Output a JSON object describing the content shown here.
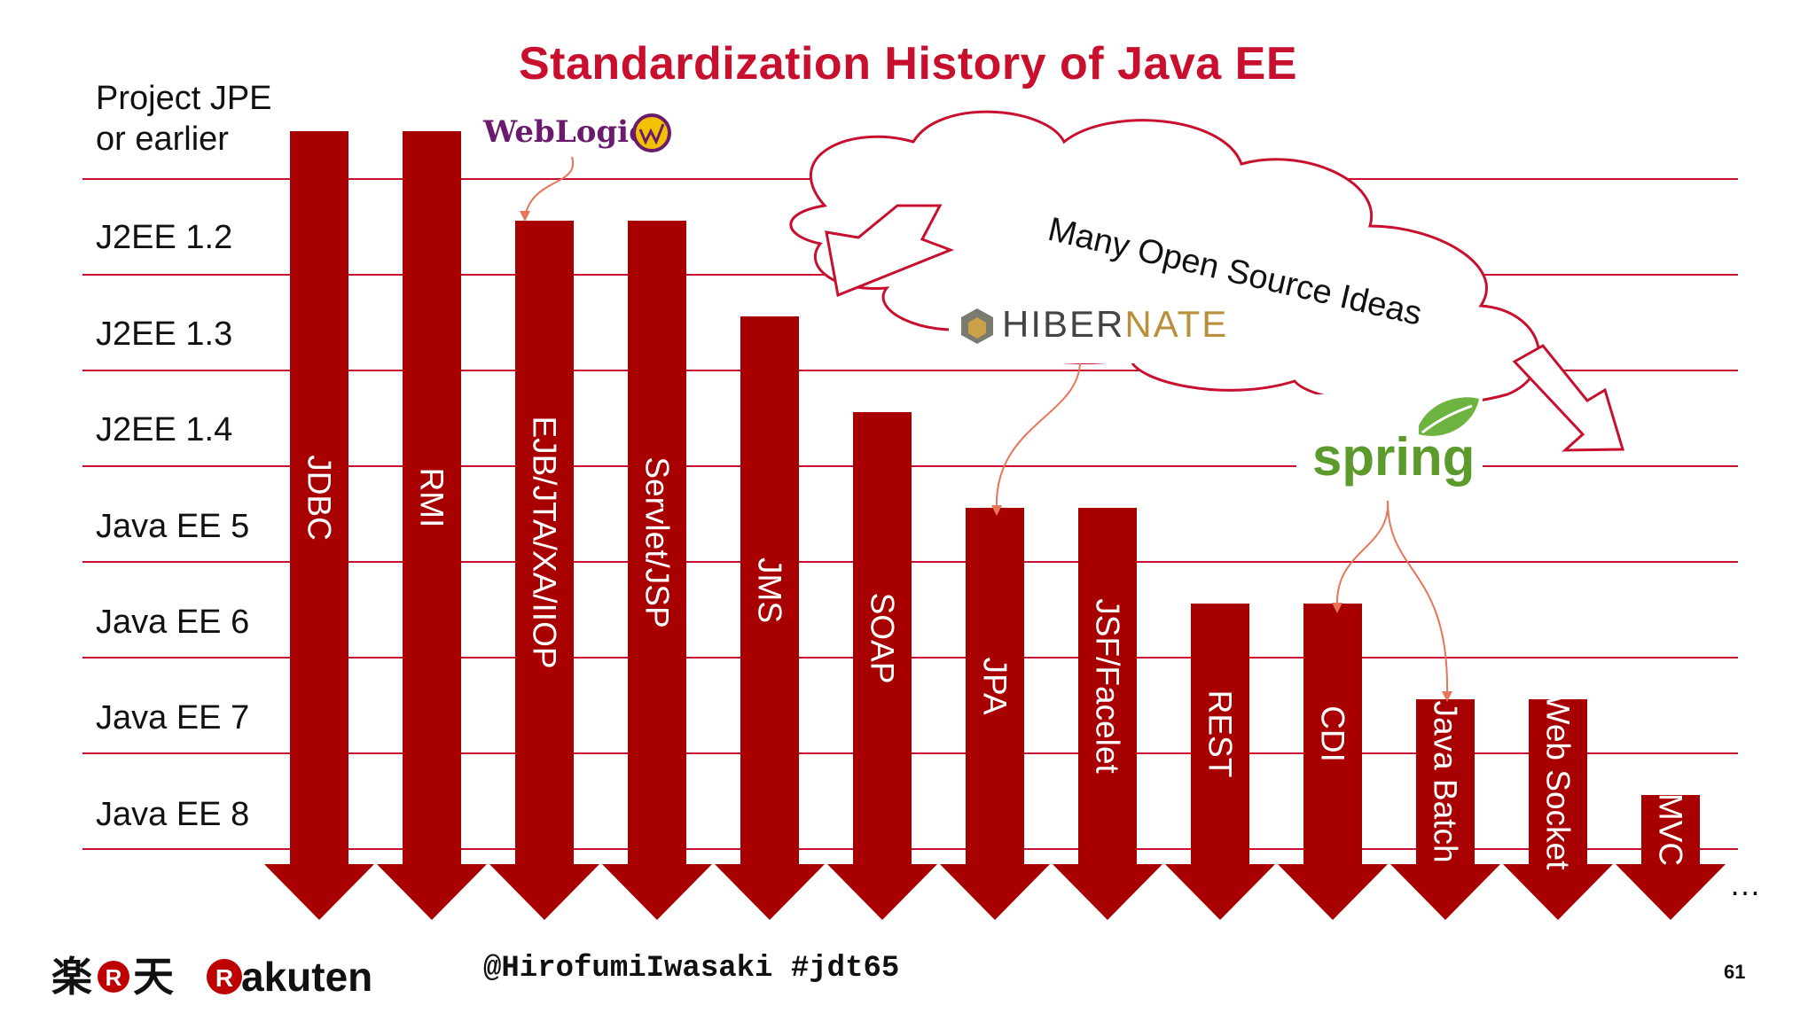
{
  "slide": {
    "title": "Standardization History of Java EE",
    "page_number": "61",
    "handle": "@HirofumiIwasaki #jdt65",
    "ellipsis": "…",
    "accent_color": "#c8102e",
    "arrow_color": "#a80000"
  },
  "rows": [
    {
      "label": "Project JPE or earlier"
    },
    {
      "label": "J2EE 1.2"
    },
    {
      "label": "J2EE 1.3"
    },
    {
      "label": "J2EE 1.4"
    },
    {
      "label": "Java EE 5"
    },
    {
      "label": "Java EE 6"
    },
    {
      "label": "Java EE 7"
    },
    {
      "label": "Java EE 8"
    }
  ],
  "technologies": [
    {
      "name": "JDBC",
      "since_row": 0
    },
    {
      "name": "RMI",
      "since_row": 0
    },
    {
      "name": "EJB/JTA/XA/IIOP",
      "since_row": 1
    },
    {
      "name": "Servlet/JSP",
      "since_row": 1
    },
    {
      "name": "JMS",
      "since_row": 2
    },
    {
      "name": "SOAP",
      "since_row": 3
    },
    {
      "name": "JPA",
      "since_row": 4
    },
    {
      "name": "JSF/Facelet",
      "since_row": 4
    },
    {
      "name": "REST",
      "since_row": 5
    },
    {
      "name": "CDI",
      "since_row": 5
    },
    {
      "name": "Java Batch",
      "since_row": 6
    },
    {
      "name": "Web Socket",
      "since_row": 6
    },
    {
      "name": "MVC",
      "since_row": 7
    }
  ],
  "cloud": {
    "text": "Many Open Source Ideas"
  },
  "logos": {
    "weblogic": "WebLogic",
    "hibernate_a": "HIBER",
    "hibernate_b": "NATE",
    "spring": "spring",
    "rakuten_kanji_a": "楽",
    "rakuten_kanji_b": "天",
    "rakuten_r": "R",
    "rakuten_word": "akuten"
  }
}
